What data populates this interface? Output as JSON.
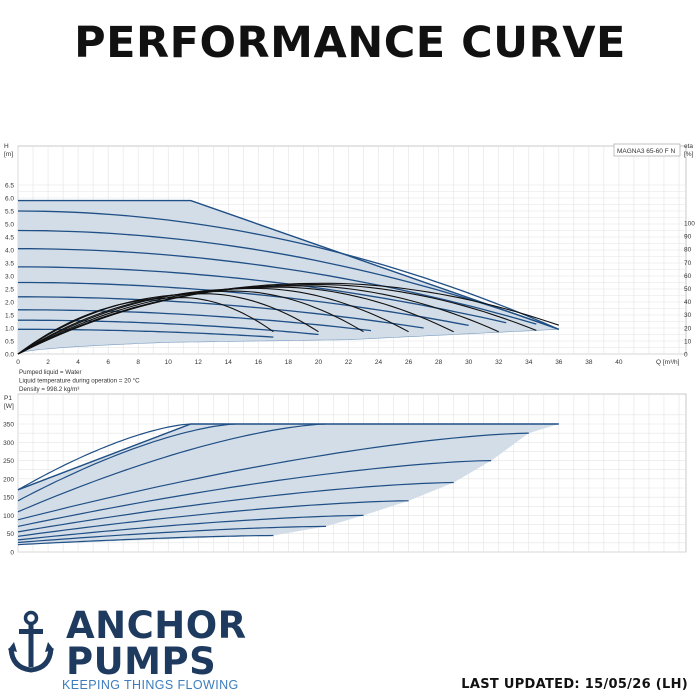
{
  "page": {
    "title": "PERFORMANCE CURVE",
    "last_updated": "LAST UPDATED: 15/05/26 (LH)"
  },
  "brand": {
    "name_line1": "ANCHOR",
    "name_line2": "PUMPS",
    "tagline": "KEEPING THINGS FLOWING",
    "icon": "anchor-icon",
    "color_primary": "#1e3a5f",
    "color_tagline": "#3d7dbd"
  },
  "colors": {
    "curve": "#1f4f85",
    "fill": "#d3dde8",
    "efficiency": "#111111",
    "grid": "#e3e3e3"
  },
  "chart_data": [
    {
      "type": "line",
      "model": "MAGNA3 65-60 F N",
      "ylabel_top": "H",
      "ylabel_unit": "[m]",
      "y2label_top": "eta",
      "y2label_unit": "[%]",
      "xlabel": "Q [m³/h]",
      "xlim": [
        0,
        44
      ],
      "ylim": [
        0,
        6.5
      ],
      "y2lim": [
        0,
        110
      ],
      "x_ticks": [
        "0",
        "2",
        "4",
        "6",
        "8",
        "10",
        "12",
        "14",
        "16",
        "18",
        "20",
        "22",
        "24",
        "26",
        "28",
        "30",
        "32",
        "34",
        "36",
        "38",
        "40"
      ],
      "y_ticks": [
        "0.0",
        "0.5",
        "1.0",
        "1.5",
        "2.0",
        "2.5",
        "3.0",
        "3.5",
        "4.0",
        "4.5",
        "5.0",
        "5.5",
        "6.0",
        "6.5"
      ],
      "y2_ticks": [
        "0",
        "10",
        "20",
        "30",
        "40",
        "50",
        "60",
        "70",
        "80",
        "90",
        "100"
      ],
      "grid": true,
      "notes": [
        "Pumped liquid = Water",
        "Liquid temperature during operation = 20 °C",
        "Density = 998.2 kg/m³"
      ],
      "envelope": {
        "max_curve": [
          [
            0,
            5.9
          ],
          [
            11.5,
            5.9
          ],
          [
            36,
            0.95
          ]
        ],
        "min_curve": [
          [
            0,
            0.0
          ],
          [
            10,
            0.45
          ],
          [
            22,
            0.55
          ],
          [
            36,
            0.95
          ]
        ]
      },
      "series": [
        {
          "h0": 5.5,
          "qmax": 36.0,
          "hend": 0.95
        },
        {
          "h0": 4.75,
          "qmax": 36.0,
          "hend": 0.95
        },
        {
          "h0": 4.05,
          "qmax": 34.5,
          "hend": 1.15
        },
        {
          "h0": 3.35,
          "qmax": 32.5,
          "hend": 1.2
        },
        {
          "h0": 2.75,
          "qmax": 30.0,
          "hend": 1.1
        },
        {
          "h0": 2.2,
          "qmax": 27.0,
          "hend": 1.0
        },
        {
          "h0": 1.7,
          "qmax": 23.5,
          "hend": 0.9
        },
        {
          "h0": 1.3,
          "qmax": 20.0,
          "hend": 0.75
        },
        {
          "h0": 0.95,
          "qmax": 17.0,
          "hend": 0.65
        }
      ],
      "efficiency_series": [
        {
          "qend": 36.0,
          "peak": 54,
          "qpeak": 20.5,
          "eend": 22
        },
        {
          "qend": 34.5,
          "peak": 53,
          "qpeak": 20.0,
          "eend": 18
        },
        {
          "qend": 32.0,
          "peak": 52,
          "qpeak": 19.0,
          "eend": 17
        },
        {
          "qend": 29.0,
          "peak": 51,
          "qpeak": 17.5,
          "eend": 17
        },
        {
          "qend": 26.0,
          "peak": 50,
          "qpeak": 16.0,
          "eend": 17
        },
        {
          "qend": 23.0,
          "peak": 48,
          "qpeak": 14.5,
          "eend": 17
        },
        {
          "qend": 20.0,
          "peak": 46,
          "qpeak": 12.5,
          "eend": 17
        },
        {
          "qend": 17.0,
          "peak": 43,
          "qpeak": 11.0,
          "eend": 17
        }
      ]
    },
    {
      "type": "line",
      "ylabel_top": "P1",
      "ylabel_unit": "[W]",
      "xlim": [
        0,
        44
      ],
      "ylim": [
        0,
        380
      ],
      "y_ticks": [
        "0",
        "50",
        "100",
        "150",
        "200",
        "250",
        "300",
        "350"
      ],
      "grid": true,
      "envelope": {
        "max_curve": [
          [
            0,
            170
          ],
          [
            11.5,
            350
          ],
          [
            36,
            350
          ]
        ],
        "min_curve": [
          [
            0,
            20
          ],
          [
            17,
            45
          ]
        ]
      },
      "series": [
        {
          "p0": 170,
          "qmax": 11.5,
          "pend": 350
        },
        {
          "p0": 140,
          "qmax": 14.5,
          "pend": 350
        },
        {
          "p0": 110,
          "qmax": 20.5,
          "pend": 350
        },
        {
          "p0": 88,
          "qmax": 34.0,
          "pend": 325
        },
        {
          "p0": 70,
          "qmax": 31.5,
          "pend": 250
        },
        {
          "p0": 55,
          "qmax": 29.0,
          "pend": 190
        },
        {
          "p0": 43,
          "qmax": 26.0,
          "pend": 140
        },
        {
          "p0": 33,
          "qmax": 23.0,
          "pend": 100
        },
        {
          "p0": 26,
          "qmax": 20.5,
          "pend": 70
        },
        {
          "p0": 20,
          "qmax": 17.0,
          "pend": 45
        }
      ]
    }
  ]
}
